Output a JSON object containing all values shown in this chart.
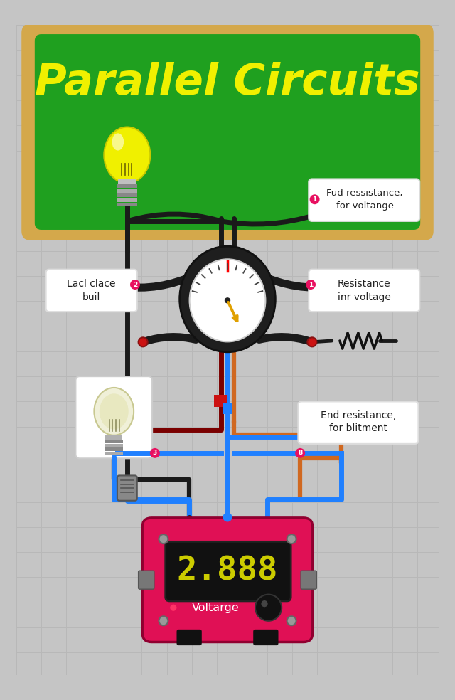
{
  "bg_color": "#c5c5c5",
  "grid_color": "#b8b8b8",
  "title": "Parallel Circuits",
  "title_color": "#f0f000",
  "board_bg": "#1fa01f",
  "board_border": "#d4a84b",
  "label1": "Fud ressistance,\nfor voltange",
  "label2": "Lacl clace\nbuil",
  "label3": "Resistance\ninr voltage",
  "label4": "End resistance,\nfor blitment",
  "voltmeter_text": "2.888",
  "voltmeter_label": "Voltarge",
  "voltmeter_body": "#e01055",
  "voltmeter_screen": "#111111",
  "voltmeter_digit": "#cccc00",
  "wire_dark": "#1a1a1a",
  "wire_dark2": "#2a2a2a",
  "wire_red": "#7a0000",
  "wire_blue": "#2080ff",
  "wire_orange": "#d06820"
}
